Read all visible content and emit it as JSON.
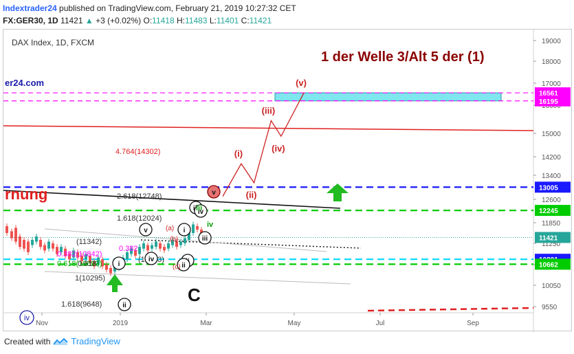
{
  "header": {
    "publisher": "Indextrader24",
    "published_text": "published on TradingView.com, February 21, 2019 10:27:32 CET",
    "symbol": "FX:GER30, 1D",
    "last": "11421",
    "change": "+3 (+0.02%)",
    "open_label": "O:",
    "open": "11418",
    "high_label": "H:",
    "high": "11483",
    "low_label": "L:",
    "low": "11401",
    "close_label": "C:",
    "close": "11421"
  },
  "footer": {
    "created_with": "Created with",
    "brand": "TradingView",
    "logo_icon": "tradingview-logo-icon"
  },
  "colors": {
    "accent_red": "#8b0000",
    "magenta": "#ff00ff",
    "blue_dash": "#1a1aff",
    "green_dash": "#00cc00",
    "cyan": "#00d8ff",
    "trend_red": "#e02020",
    "wave_red": "#cc2222",
    "wave_green": "#0aa00a",
    "price_green": "#26a69a",
    "price_red": "#ef5350"
  },
  "chart_data": {
    "type": "line",
    "chart_label": "DAX Index, 1D, FXCM",
    "title": "1 der Welle 3/Alt 5 der (1)",
    "watermark_left": "er24.com",
    "warning_fragment": "rnung",
    "ylim": [
      9400,
      19400
    ],
    "x_ticks": [
      "Nov",
      "2019",
      "Mar",
      "May",
      "Jul",
      "Sep"
    ],
    "y_ticks": [
      19000,
      18000,
      17000,
      16000,
      15000,
      14200,
      13400,
      12600,
      11850,
      11250,
      10650,
      10050,
      9550
    ],
    "price_scale_labels": [
      {
        "text": "16561",
        "value": 16561,
        "color": "#ff00ff"
      },
      {
        "text": "16195",
        "value": 16195,
        "color": "#ff00ff"
      },
      {
        "text": "13005",
        "value": 13005,
        "color": "#1a1aff"
      },
      {
        "text": "12245",
        "value": 12245,
        "color": "#00cc00"
      },
      {
        "text": "11421",
        "value": 11421,
        "color": "#26a69a"
      },
      {
        "text": "10801",
        "value": 10801,
        "color": "#1a1aff"
      },
      {
        "text": "10662",
        "value": 10662,
        "color": "#00cc00"
      }
    ],
    "horizontal_levels": [
      {
        "value": 16561,
        "style": "dash",
        "color": "#ff00ff"
      },
      {
        "value": 16195,
        "style": "dash",
        "color": "#ff00ff"
      },
      {
        "value": 13005,
        "style": "dash-bold",
        "color": "#1a1aff"
      },
      {
        "value": 12245,
        "style": "dash-bold",
        "color": "#00cc00"
      },
      {
        "value": 10801,
        "style": "dash-bold",
        "color": "#00d8ff"
      },
      {
        "value": 10662,
        "style": "dash-bold",
        "color": "#00cc00"
      }
    ],
    "target_zone": {
      "from": 16195,
      "to": 16561,
      "color": "#7fe5ee"
    },
    "fib_labels": [
      {
        "text": "4.764(14302)",
        "color": "#e02020"
      },
      {
        "text": "2.618(12748)",
        "color": "#333333"
      },
      {
        "text": "1.618(12024)",
        "color": "#333333"
      },
      {
        "text": "0.382(10842)",
        "color": "#ff00ff"
      },
      {
        "text": "0.618(10693)",
        "color": "#00aa00"
      },
      {
        "text": "1(10295)",
        "color": "#333333"
      },
      {
        "text": "1.618(9648)",
        "color": "#333333"
      },
      {
        "text": "(11342)",
        "color": "#333333"
      },
      {
        "text": "0.618",
        "color": "#333333"
      },
      {
        "text": "0.382",
        "color": "#ff00ff"
      },
      {
        "text": "(10853)",
        "color": "#333333"
      }
    ],
    "projection_path": [
      {
        "t": "2019-03-10",
        "v": 12700
      },
      {
        "t": "2019-03-23",
        "v": 13900,
        "label": "(i)"
      },
      {
        "t": "2019-04-01",
        "v": 13150,
        "label": "(ii)"
      },
      {
        "t": "2019-04-13",
        "v": 15450,
        "label": "(iii)"
      },
      {
        "t": "2019-04-20",
        "v": 14900,
        "label": "(iv)"
      },
      {
        "t": "2019-05-06",
        "v": 16561,
        "label": "(v)"
      }
    ],
    "wave_labels_black": [
      "i",
      "ii",
      "iii",
      "iv",
      "v",
      "i",
      "ii",
      "iii",
      "iv",
      "ii",
      "C"
    ],
    "wave_labels_green": [
      "iii",
      "iv",
      "v"
    ],
    "wave_labels_red": [
      "(a)",
      "(b)",
      "(c)",
      "v"
    ],
    "wave_labels_blue": [
      "iv"
    ],
    "annotation_large": "C"
  }
}
